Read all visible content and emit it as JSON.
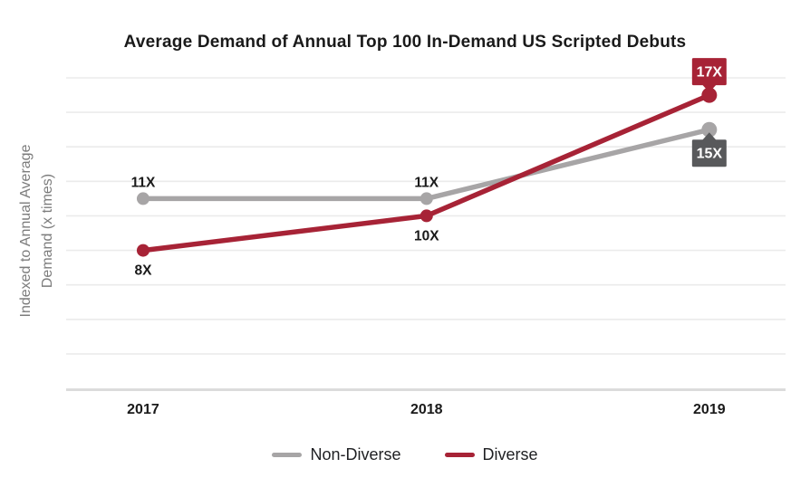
{
  "chart_data": {
    "type": "line",
    "title": "Average Demand of Annual Top 100 In-Demand US Scripted Debuts",
    "categories": [
      "2017",
      "2018",
      "2019"
    ],
    "series": [
      {
        "name": "Non-Diverse",
        "color": "#a7a5a6",
        "badge_color": "#58595b",
        "values": [
          11,
          11,
          15
        ],
        "point_labels": [
          "11X",
          "11X",
          "15X"
        ]
      },
      {
        "name": "Diverse",
        "color": "#a72336",
        "badge_color": "#a72336",
        "values": [
          8,
          10,
          17
        ],
        "point_labels": [
          "8X",
          "10X",
          "17X"
        ]
      }
    ],
    "xlabel": "",
    "ylabel": "Indexed to Annual Average Demand (x times)",
    "ylim": [
      0,
      18
    ],
    "grid_step": 2,
    "grid": true,
    "legend_position": "bottom",
    "colors": {
      "background": "#ffffff",
      "gridline": "#ebebeb",
      "axis_line": "#dcdcdc",
      "text": "#1a1a1a",
      "ylabel_text": "#7c7c7c",
      "badge_text": "#ffffff"
    }
  }
}
